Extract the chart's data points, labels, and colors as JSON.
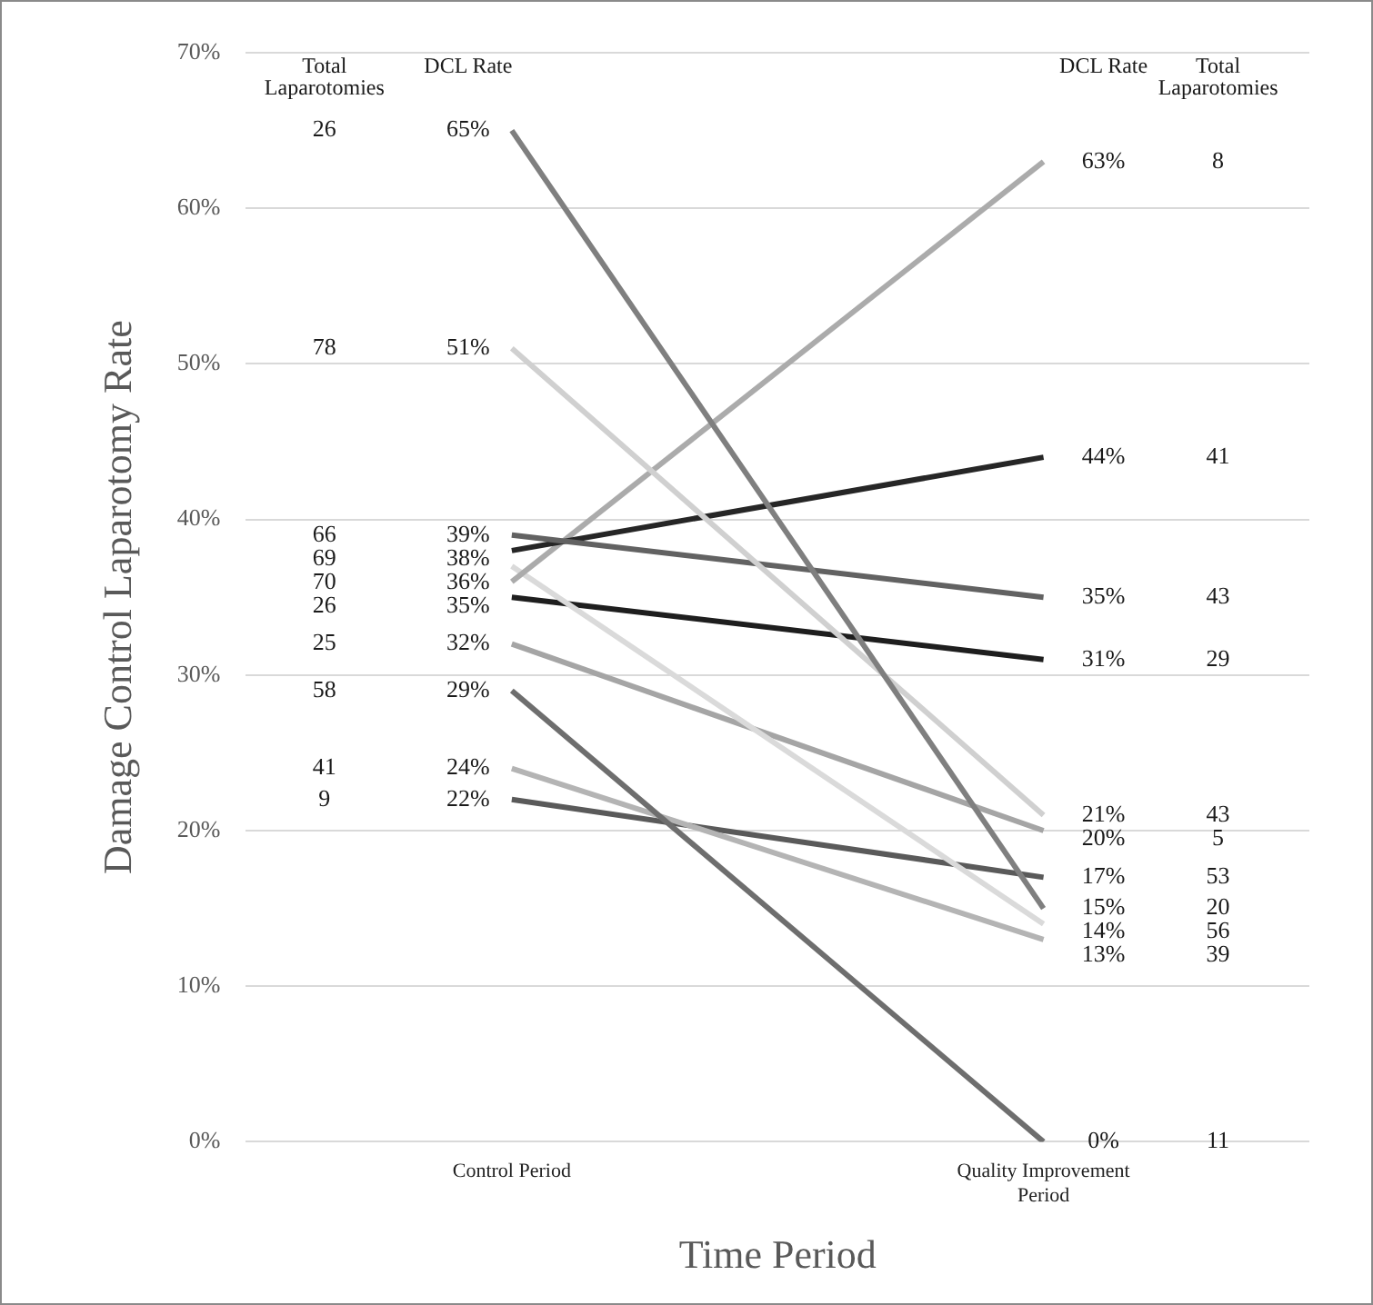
{
  "chart_data": {
    "type": "line",
    "xlabel": "Time Period",
    "ylabel": "Damage Control Laparotomy Rate",
    "categories": [
      "Control Period",
      "Quality Improvement Period"
    ],
    "ylim": [
      0,
      70
    ],
    "yticks": [
      {
        "value": 0,
        "label": "0%"
      },
      {
        "value": 10,
        "label": "10%"
      },
      {
        "value": 20,
        "label": "20%"
      },
      {
        "value": 30,
        "label": "30%"
      },
      {
        "value": 40,
        "label": "40%"
      },
      {
        "value": 50,
        "label": "50%"
      },
      {
        "value": 60,
        "label": "60%"
      },
      {
        "value": 70,
        "label": "70%"
      }
    ],
    "grid": "y",
    "legend": false,
    "marker": "none",
    "line_style": "solid",
    "series": [
      {
        "color": "#7f7f7f",
        "values": [
          65,
          15
        ],
        "value_labels": [
          "65%",
          "15%"
        ]
      },
      {
        "color": "#d0d0d0",
        "values": [
          51,
          21
        ],
        "value_labels": [
          "51%",
          "21%"
        ]
      },
      {
        "color": "#626262",
        "values": [
          39,
          35
        ],
        "value_labels": [
          "39%",
          "35%"
        ]
      },
      {
        "color": "#262626",
        "values": [
          38,
          44
        ],
        "value_labels": [
          "38%",
          "44%"
        ]
      },
      {
        "color": "#ababab",
        "values": [
          36,
          63
        ],
        "value_labels": [
          "36%",
          "63%"
        ]
      },
      {
        "color": "#dadada",
        "values": [
          37,
          14
        ],
        "value_labels": [
          null,
          "14%"
        ]
      },
      {
        "color": "#1e1e1e",
        "values": [
          35,
          31
        ],
        "value_labels": [
          "35%",
          "31%"
        ]
      },
      {
        "color": "#a5a5a5",
        "values": [
          32,
          20
        ],
        "value_labels": [
          "32%",
          "20%"
        ]
      },
      {
        "color": "#6e6e6e",
        "values": [
          29,
          0
        ],
        "value_labels": [
          "29%",
          "0%"
        ]
      },
      {
        "color": "#b4b4b4",
        "values": [
          24,
          13
        ],
        "value_labels": [
          "24%",
          "13%"
        ]
      },
      {
        "color": "#5a5a5a",
        "values": [
          22,
          17
        ],
        "value_labels": [
          "22%",
          "17%"
        ]
      }
    ],
    "annotations": [
      "Total Laparotomies",
      "DCL Rate",
      "DCL Rate",
      "Total Laparotomies",
      "26",
      "78",
      "66",
      "69",
      "70",
      "26",
      "25",
      "58",
      "41",
      "9",
      "20",
      "43",
      "43",
      "41",
      "8",
      "56",
      "29",
      "5",
      "11",
      "39",
      "53"
    ]
  }
}
